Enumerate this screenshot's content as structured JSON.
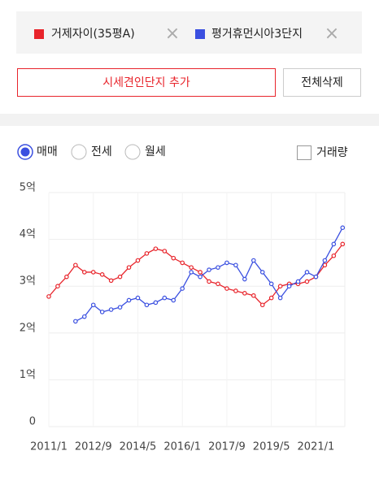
{
  "controls": {
    "add_button": "시세견인단지 추가",
    "delete_all": "전체삭제",
    "remove_icon": "×",
    "trade_types": [
      "매매",
      "전세",
      "월세"
    ],
    "volume": "거래량"
  },
  "chart_data": {
    "type": "line",
    "x": [
      "2011/1",
      "2011/5",
      "2011/9",
      "2012/1",
      "2012/5",
      "2012/9",
      "2013/1",
      "2013/5",
      "2013/9",
      "2014/1",
      "2014/5",
      "2014/9",
      "2015/1",
      "2015/5",
      "2015/9",
      "2016/1",
      "2016/5",
      "2016/9",
      "2017/1",
      "2017/5",
      "2017/9",
      "2018/1",
      "2018/5",
      "2018/9",
      "2019/1",
      "2019/5",
      "2019/9",
      "2020/1",
      "2020/5",
      "2020/9",
      "2021/1",
      "2021/5",
      "2021/9",
      "2022/1"
    ],
    "series": [
      {
        "name": "거제자이(35평A)",
        "color": "#e8242b",
        "values": [
          2.78,
          3.0,
          3.2,
          3.45,
          3.3,
          3.3,
          3.25,
          3.12,
          3.2,
          3.4,
          3.55,
          3.7,
          3.8,
          3.75,
          3.6,
          3.5,
          3.4,
          3.3,
          3.1,
          3.05,
          2.95,
          2.9,
          2.85,
          2.8,
          2.6,
          2.75,
          3.0,
          3.05,
          3.05,
          3.1,
          3.2,
          3.45,
          3.65,
          3.9
        ]
      },
      {
        "name": "평거휴먼시아3단지",
        "color": "#3a4fe0",
        "values": [
          null,
          null,
          null,
          2.25,
          2.35,
          2.6,
          2.45,
          2.5,
          2.55,
          2.7,
          2.75,
          2.6,
          2.65,
          2.75,
          2.7,
          2.95,
          3.3,
          3.2,
          3.35,
          3.4,
          3.5,
          3.45,
          3.15,
          3.55,
          3.3,
          3.05,
          2.75,
          3.0,
          3.1,
          3.3,
          3.2,
          3.55,
          3.9,
          4.25
        ]
      }
    ],
    "xlim": [
      "2011/1",
      "2022/2"
    ],
    "xticks": [
      "2011/1",
      "2012/9",
      "2014/5",
      "2016/1",
      "2017/9",
      "2019/5",
      "2021/1"
    ],
    "ylim": [
      0,
      5
    ],
    "yticks": [
      0,
      {
        "value": 1,
        "label": "1억"
      },
      {
        "value": 2,
        "label": "2억"
      },
      {
        "value": 3,
        "label": "3억"
      },
      {
        "value": 4,
        "label": "4억"
      },
      {
        "value": 5,
        "label": "5억"
      }
    ],
    "grid": true
  }
}
